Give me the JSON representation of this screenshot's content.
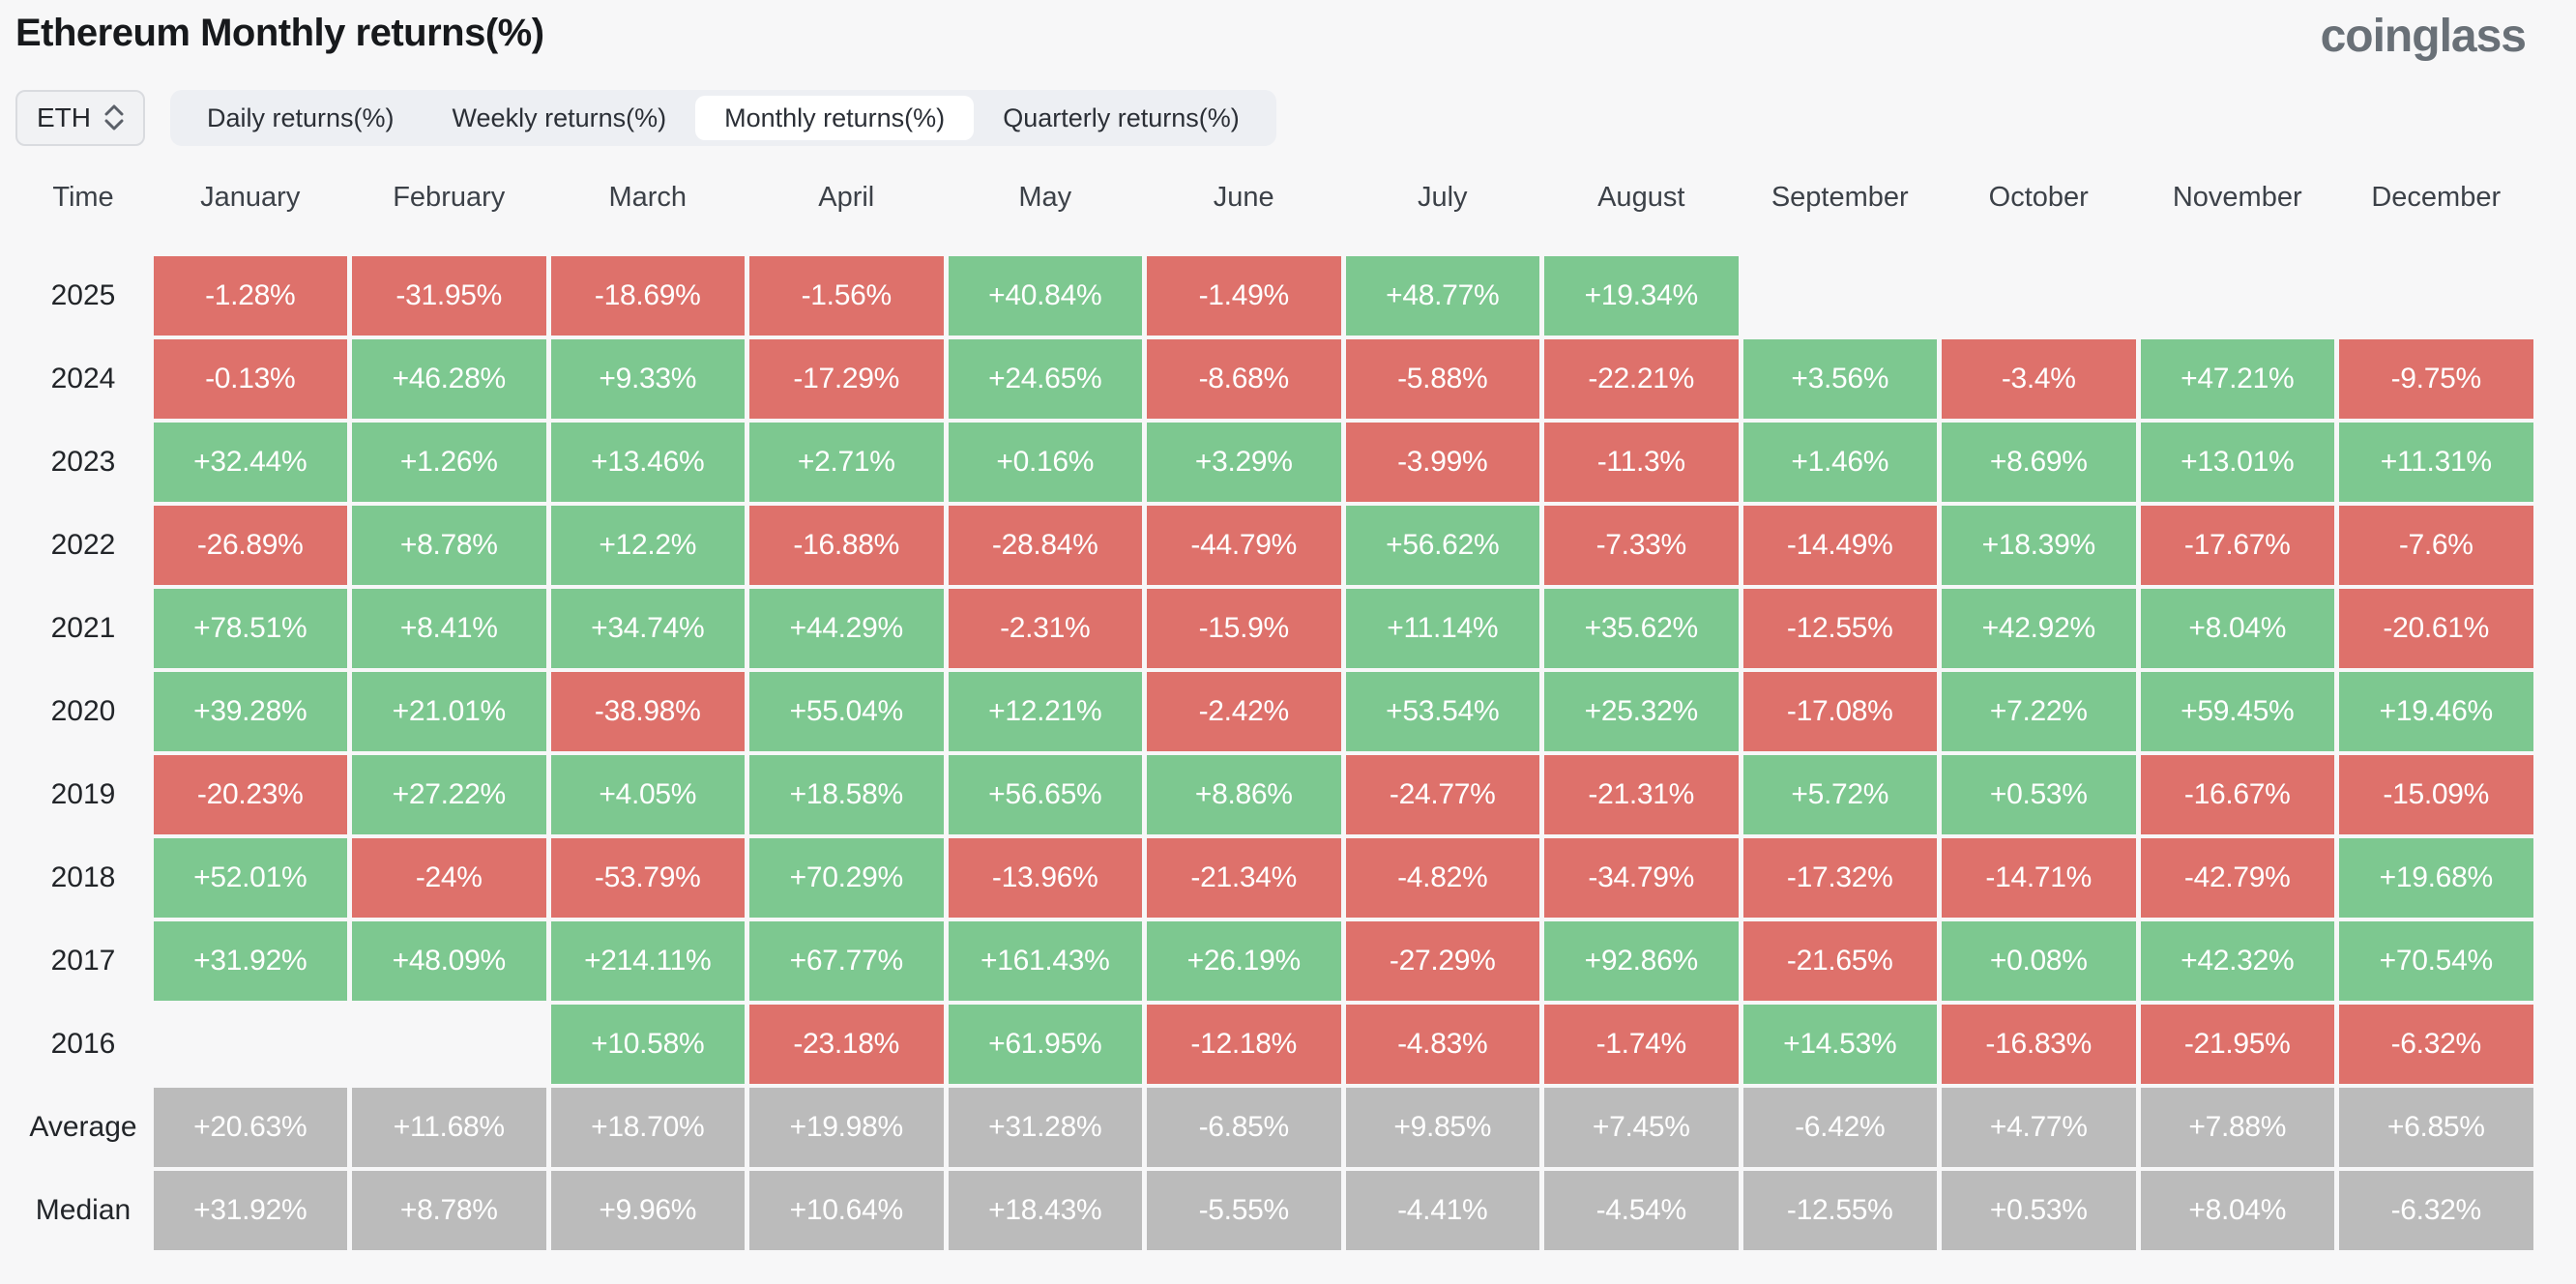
{
  "header": {
    "title": "Ethereum Monthly returns(%)",
    "logo": "coinglass"
  },
  "controls": {
    "symbol_select": {
      "value": "ETH"
    },
    "tabs": [
      {
        "label": "Daily returns(%)",
        "active": false
      },
      {
        "label": "Weekly returns(%)",
        "active": false
      },
      {
        "label": "Monthly returns(%)",
        "active": true
      },
      {
        "label": "Quarterly returns(%)",
        "active": false
      }
    ]
  },
  "colors": {
    "positive": "#7dc890",
    "negative": "#de716b",
    "summary": "#bbbbbb",
    "tab_bar_bg": "#edeff3",
    "active_tab_bg": "#ffffff",
    "page_bg": "#f7f7f8"
  },
  "table": {
    "time_header": "Time",
    "months": [
      "January",
      "February",
      "March",
      "April",
      "May",
      "June",
      "July",
      "August",
      "September",
      "October",
      "November",
      "December"
    ],
    "rows": [
      {
        "label": "2025",
        "type": "year",
        "values": [
          "-1.28%",
          "-31.95%",
          "-18.69%",
          "-1.56%",
          "+40.84%",
          "-1.49%",
          "+48.77%",
          "+19.34%",
          "",
          "",
          "",
          ""
        ]
      },
      {
        "label": "2024",
        "type": "year",
        "values": [
          "-0.13%",
          "+46.28%",
          "+9.33%",
          "-17.29%",
          "+24.65%",
          "-8.68%",
          "-5.88%",
          "-22.21%",
          "+3.56%",
          "-3.4%",
          "+47.21%",
          "-9.75%"
        ]
      },
      {
        "label": "2023",
        "type": "year",
        "values": [
          "+32.44%",
          "+1.26%",
          "+13.46%",
          "+2.71%",
          "+0.16%",
          "+3.29%",
          "-3.99%",
          "-11.3%",
          "+1.46%",
          "+8.69%",
          "+13.01%",
          "+11.31%"
        ]
      },
      {
        "label": "2022",
        "type": "year",
        "values": [
          "-26.89%",
          "+8.78%",
          "+12.2%",
          "-16.88%",
          "-28.84%",
          "-44.79%",
          "+56.62%",
          "-7.33%",
          "-14.49%",
          "+18.39%",
          "-17.67%",
          "-7.6%"
        ]
      },
      {
        "label": "2021",
        "type": "year",
        "values": [
          "+78.51%",
          "+8.41%",
          "+34.74%",
          "+44.29%",
          "-2.31%",
          "-15.9%",
          "+11.14%",
          "+35.62%",
          "-12.55%",
          "+42.92%",
          "+8.04%",
          "-20.61%"
        ]
      },
      {
        "label": "2020",
        "type": "year",
        "values": [
          "+39.28%",
          "+21.01%",
          "-38.98%",
          "+55.04%",
          "+12.21%",
          "-2.42%",
          "+53.54%",
          "+25.32%",
          "-17.08%",
          "+7.22%",
          "+59.45%",
          "+19.46%"
        ]
      },
      {
        "label": "2019",
        "type": "year",
        "values": [
          "-20.23%",
          "+27.22%",
          "+4.05%",
          "+18.58%",
          "+56.65%",
          "+8.86%",
          "-24.77%",
          "-21.31%",
          "+5.72%",
          "+0.53%",
          "-16.67%",
          "-15.09%"
        ]
      },
      {
        "label": "2018",
        "type": "year",
        "values": [
          "+52.01%",
          "-24%",
          "-53.79%",
          "+70.29%",
          "-13.96%",
          "-21.34%",
          "-4.82%",
          "-34.79%",
          "-17.32%",
          "-14.71%",
          "-42.79%",
          "+19.68%"
        ]
      },
      {
        "label": "2017",
        "type": "year",
        "values": [
          "+31.92%",
          "+48.09%",
          "+214.11%",
          "+67.77%",
          "+161.43%",
          "+26.19%",
          "-27.29%",
          "+92.86%",
          "-21.65%",
          "+0.08%",
          "+42.32%",
          "+70.54%"
        ]
      },
      {
        "label": "2016",
        "type": "year",
        "values": [
          "",
          "",
          "+10.58%",
          "-23.18%",
          "+61.95%",
          "-12.18%",
          "-4.83%",
          "-1.74%",
          "+14.53%",
          "-16.83%",
          "-21.95%",
          "-6.32%"
        ]
      },
      {
        "label": "Average",
        "type": "summary",
        "values": [
          "+20.63%",
          "+11.68%",
          "+18.70%",
          "+19.98%",
          "+31.28%",
          "-6.85%",
          "+9.85%",
          "+7.45%",
          "-6.42%",
          "+4.77%",
          "+7.88%",
          "+6.85%"
        ]
      },
      {
        "label": "Median",
        "type": "summary",
        "values": [
          "+31.92%",
          "+8.78%",
          "+9.96%",
          "+10.64%",
          "+18.43%",
          "-5.55%",
          "-4.41%",
          "-4.54%",
          "-12.55%",
          "+0.53%",
          "+8.04%",
          "-6.32%"
        ]
      }
    ]
  }
}
